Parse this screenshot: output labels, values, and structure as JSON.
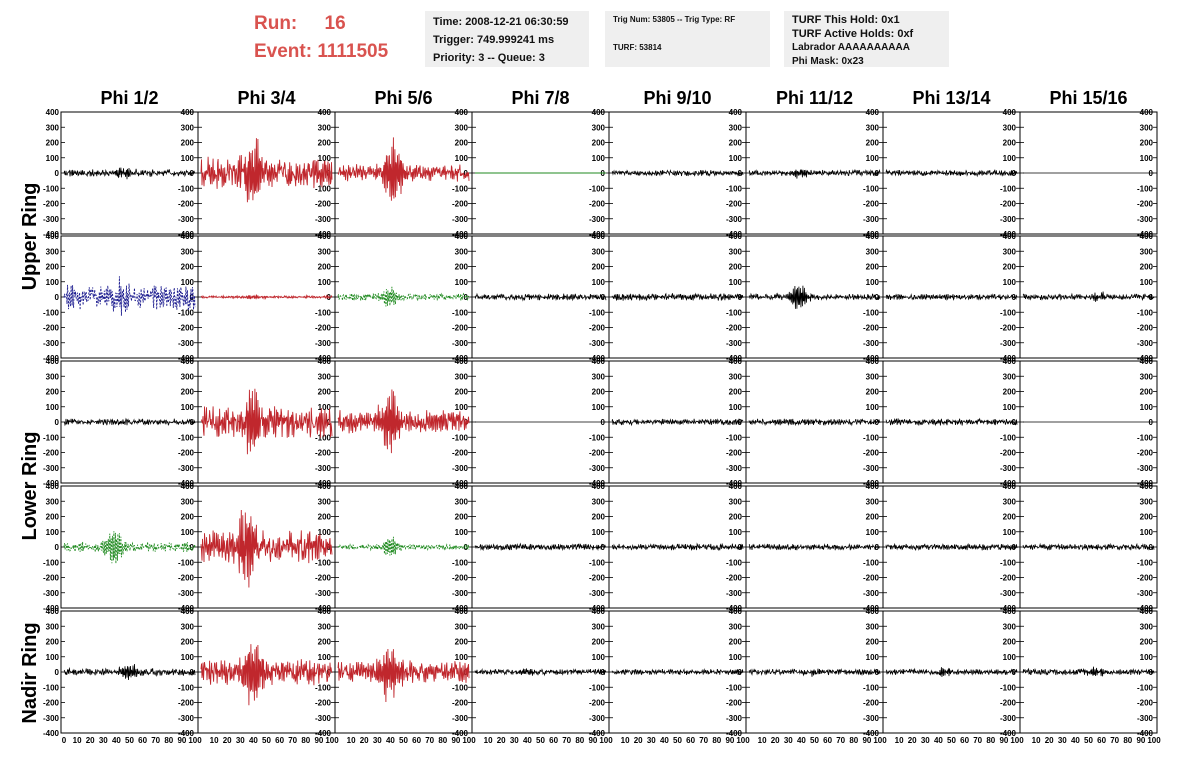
{
  "header": {
    "run_label": "Run:",
    "run_value": "16",
    "event_label": "Event:",
    "event_value": "1111505",
    "time": "Time: 2008-12-21 06:30:59",
    "trigger": "Trigger: 749.999241 ms",
    "priority": "Priority: 3 -- Queue: 3",
    "trig_num": "Trig Num: 53805 -- Trig Type: RF",
    "turf": "TURF: 53814",
    "turf_hold": "TURF This Hold: 0x1",
    "turf_active": "TURF Active Holds: 0xf",
    "labrador": "Labrador AAAAAAAAAA",
    "phi_mask": "Phi Mask: 0x23"
  },
  "colors": {
    "black": "#000000",
    "red": "#c0272d",
    "green": "#1f8a1f",
    "blue": "#1b1b8f",
    "title_red": "#d9534f",
    "box_bg": "#efefef"
  },
  "chart_data": {
    "type": "line",
    "columns": [
      "Phi 1/2",
      "Phi 3/4",
      "Phi 5/6",
      "Phi 7/8",
      "Phi 9/10",
      "Phi 11/12",
      "Phi 13/14",
      "Phi 15/16"
    ],
    "row_labels": [
      "Upper Ring",
      "Lower Ring",
      "Nadir Ring"
    ],
    "ylim": [
      -400,
      400
    ],
    "yticks": [
      -400,
      -300,
      -200,
      -100,
      0,
      100,
      200,
      300,
      400
    ],
    "xlim": [
      0,
      100
    ],
    "xtick_labels": [
      "0",
      "10",
      "20",
      "30",
      "40",
      "50",
      "60",
      "70",
      "80",
      "90",
      "100"
    ],
    "ring_rows": [
      0,
      0,
      1,
      1,
      2
    ],
    "panels": [
      [
        {
          "color": "black",
          "amp": 25,
          "peak": 30,
          "center": 45,
          "style": "solid"
        },
        {
          "color": "red",
          "amp": 110,
          "peak": 200,
          "center": 40,
          "style": "solid"
        },
        {
          "color": "red",
          "amp": 60,
          "peak": 200,
          "center": 42,
          "style": "solid"
        },
        {
          "color": "green",
          "amp": 0,
          "peak": 0,
          "center": 50,
          "style": "flat"
        },
        {
          "color": "black",
          "amp": 20,
          "peak": 0,
          "center": 50,
          "style": "solid"
        },
        {
          "color": "black",
          "amp": 20,
          "peak": 25,
          "center": 40,
          "style": "solid"
        },
        {
          "color": "black",
          "amp": 20,
          "peak": 0,
          "center": 50,
          "style": "solid"
        },
        {
          "color": "black",
          "amp": 0,
          "peak": 0,
          "center": 50,
          "style": "flat"
        }
      ],
      [
        {
          "color": "blue",
          "amp": 90,
          "peak": 80,
          "center": 45,
          "style": "dashed"
        },
        {
          "color": "red",
          "amp": 8,
          "peak": 10,
          "center": 40,
          "style": "solid"
        },
        {
          "color": "green",
          "amp": 25,
          "peak": 55,
          "center": 40,
          "style": "dashed"
        },
        {
          "color": "black",
          "amp": 22,
          "peak": 0,
          "center": 50,
          "style": "solid"
        },
        {
          "color": "black",
          "amp": 25,
          "peak": 0,
          "center": 50,
          "style": "solid"
        },
        {
          "color": "black",
          "amp": 22,
          "peak": 80,
          "center": 38,
          "style": "solid"
        },
        {
          "color": "black",
          "amp": 20,
          "peak": 0,
          "center": 50,
          "style": "solid"
        },
        {
          "color": "black",
          "amp": 22,
          "peak": 20,
          "center": 60,
          "style": "solid"
        }
      ],
      [
        {
          "color": "black",
          "amp": 22,
          "peak": 0,
          "center": 50,
          "style": "solid"
        },
        {
          "color": "red",
          "amp": 110,
          "peak": 200,
          "center": 40,
          "style": "solid"
        },
        {
          "color": "red",
          "amp": 80,
          "peak": 200,
          "center": 40,
          "style": "solid"
        },
        {
          "color": "black",
          "amp": 0,
          "peak": 0,
          "center": 50,
          "style": "flat"
        },
        {
          "color": "black",
          "amp": 22,
          "peak": 0,
          "center": 50,
          "style": "solid"
        },
        {
          "color": "black",
          "amp": 22,
          "peak": 0,
          "center": 50,
          "style": "solid"
        },
        {
          "color": "black",
          "amp": 25,
          "peak": 0,
          "center": 50,
          "style": "solid"
        },
        {
          "color": "black",
          "amp": 0,
          "peak": 0,
          "center": 50,
          "style": "flat"
        }
      ],
      [
        {
          "color": "green",
          "amp": 35,
          "peak": 110,
          "center": 38,
          "style": "dashed"
        },
        {
          "color": "red",
          "amp": 110,
          "peak": 250,
          "center": 35,
          "style": "solid"
        },
        {
          "color": "green",
          "amp": 18,
          "peak": 60,
          "center": 40,
          "style": "dashed"
        },
        {
          "color": "black",
          "amp": 22,
          "peak": 0,
          "center": 50,
          "style": "solid"
        },
        {
          "color": "black",
          "amp": 22,
          "peak": 0,
          "center": 50,
          "style": "solid"
        },
        {
          "color": "black",
          "amp": 22,
          "peak": 0,
          "center": 50,
          "style": "solid"
        },
        {
          "color": "black",
          "amp": 22,
          "peak": 0,
          "center": 50,
          "style": "solid"
        },
        {
          "color": "black",
          "amp": 22,
          "peak": 0,
          "center": 50,
          "style": "solid"
        }
      ],
      [
        {
          "color": "black",
          "amp": 25,
          "peak": 40,
          "center": 50,
          "style": "solid"
        },
        {
          "color": "red",
          "amp": 90,
          "peak": 200,
          "center": 40,
          "style": "solid"
        },
        {
          "color": "red",
          "amp": 75,
          "peak": 170,
          "center": 40,
          "style": "solid"
        },
        {
          "color": "black",
          "amp": 20,
          "peak": 20,
          "center": 40,
          "style": "solid"
        },
        {
          "color": "black",
          "amp": 20,
          "peak": 0,
          "center": 50,
          "style": "solid"
        },
        {
          "color": "black",
          "amp": 20,
          "peak": 15,
          "center": 50,
          "style": "solid"
        },
        {
          "color": "black",
          "amp": 20,
          "peak": 25,
          "center": 45,
          "style": "solid"
        },
        {
          "color": "black",
          "amp": 22,
          "peak": 25,
          "center": 55,
          "style": "solid"
        }
      ]
    ]
  }
}
